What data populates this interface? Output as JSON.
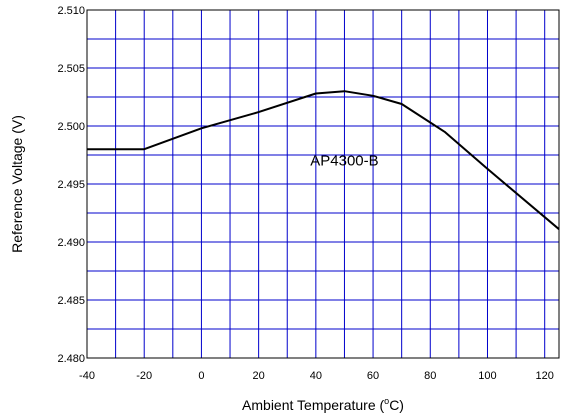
{
  "chart_data": {
    "type": "line",
    "title": "",
    "xlabel": "Ambient Temperature (",
    "xlabel_sup": "o",
    "xlabel_unit": "C)",
    "ylabel": "Reference Voltage (V)",
    "xlim": [
      -40,
      125
    ],
    "ylim": [
      2.48,
      2.51
    ],
    "x_ticks": [
      -40,
      -20,
      0,
      20,
      40,
      60,
      80,
      100,
      120
    ],
    "x_tick_labels": [
      "-40",
      "-20",
      "0",
      "20",
      "40",
      "60",
      "80",
      "100",
      "120"
    ],
    "x_minor_step": 10,
    "y_ticks": [
      2.48,
      2.485,
      2.49,
      2.495,
      2.5,
      2.505,
      2.51
    ],
    "y_tick_labels": [
      "2.480",
      "2.485",
      "2.490",
      "2.495",
      "2.500",
      "2.505",
      "2.510"
    ],
    "y_minor_step": 0.0025,
    "grid": true,
    "grid_color": "#0000cc",
    "line_color": "#000000",
    "annotation": {
      "text": "AP4300-B",
      "x": 50,
      "y": 2.4966
    },
    "series": [
      {
        "x": [
          -40,
          -20,
          0,
          20,
          40,
          50,
          60,
          70,
          85,
          100,
          125
        ],
        "y": [
          2.498,
          2.498,
          2.4998,
          2.5012,
          2.5028,
          2.503,
          2.5026,
          2.5019,
          2.4995,
          2.4963,
          2.4911
        ]
      }
    ]
  }
}
